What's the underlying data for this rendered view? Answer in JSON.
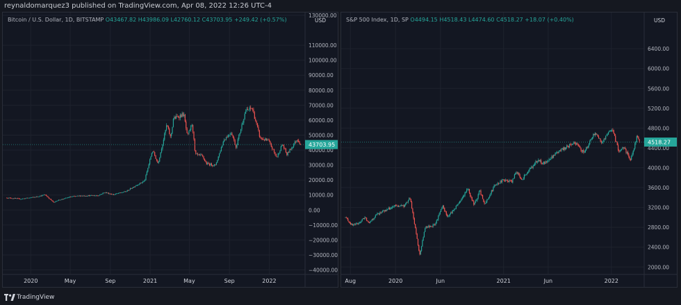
{
  "header": {
    "publisher_text": "reynaldomarquez3 published on TradingView.com, Apr 08, 2022 12:26 UTC-4"
  },
  "footer": {
    "brand": "TradingView"
  },
  "colors": {
    "up": "#26a69a",
    "down": "#ef5350",
    "background": "#131722",
    "grid": "#1e222d",
    "price_label": "#26a69a"
  },
  "chart_data": [
    {
      "type": "candlestick",
      "title": "Bitcoin / U.S. Dollar, 1D, BITSTAMP",
      "ohlc": {
        "open": "O43467.82",
        "high": "H43986.09",
        "low": "L42760.12",
        "close": "C43703.95",
        "change": "+249.42 (+0.57%)"
      },
      "currency": "USD",
      "current_price_label": "43703.95",
      "current_price": 43703.95,
      "ylim": [
        -43000,
        130000
      ],
      "y_ticks": [
        130000,
        110000,
        100000,
        90000,
        80000,
        70000,
        60000,
        50000,
        40000,
        30000,
        20000,
        10000,
        0,
        -10000,
        -20000,
        -30000,
        -40000
      ],
      "y_tick_labels": [
        "130000.00",
        "110000.00",
        "100000.00",
        "90000.00",
        "80000.00",
        "70000.00",
        "60000.00",
        "50000.00",
        "40000.00",
        "30000.00",
        "20000.00",
        "10000.00",
        "0.00",
        "−10000.00",
        "−20000.00",
        "−30000.00",
        "−40000.00"
      ],
      "x_tick_labels": [
        "2020",
        "May",
        "Sep",
        "2021",
        "May",
        "Sep",
        "2022"
      ],
      "x_ticks": [
        "2020-01-01",
        "2020-05-01",
        "2020-09-01",
        "2021-01-01",
        "2021-05-01",
        "2021-09-01",
        "2022-01-01"
      ],
      "x_range": [
        "2019-10-20",
        "2022-04-08"
      ],
      "path": [
        [
          "2019-10-20",
          8200
        ],
        [
          "2019-12-01",
          7400
        ],
        [
          "2020-01-15",
          8700
        ],
        [
          "2020-02-14",
          10200
        ],
        [
          "2020-03-12",
          4900
        ],
        [
          "2020-03-20",
          6200
        ],
        [
          "2020-05-01",
          8800
        ],
        [
          "2020-06-01",
          9500
        ],
        [
          "2020-07-25",
          9700
        ],
        [
          "2020-08-15",
          11800
        ],
        [
          "2020-09-10",
          10300
        ],
        [
          "2020-10-20",
          12500
        ],
        [
          "2020-11-15",
          16000
        ],
        [
          "2020-12-15",
          19500
        ],
        [
          "2021-01-08",
          40000
        ],
        [
          "2021-01-25",
          31000
        ],
        [
          "2021-02-21",
          57000
        ],
        [
          "2021-03-05",
          48000
        ],
        [
          "2021-03-13",
          61000
        ],
        [
          "2021-04-14",
          64000
        ],
        [
          "2021-04-25",
          49000
        ],
        [
          "2021-05-10",
          58000
        ],
        [
          "2021-05-19",
          37000
        ],
        [
          "2021-06-10",
          36000
        ],
        [
          "2021-06-22",
          31000
        ],
        [
          "2021-07-20",
          29800
        ],
        [
          "2021-08-15",
          47000
        ],
        [
          "2021-09-07",
          52000
        ],
        [
          "2021-09-21",
          42000
        ],
        [
          "2021-10-20",
          66000
        ],
        [
          "2021-11-10",
          68000
        ],
        [
          "2021-12-04",
          48000
        ],
        [
          "2021-12-30",
          46000
        ],
        [
          "2022-01-24",
          35000
        ],
        [
          "2022-02-10",
          44000
        ],
        [
          "2022-02-24",
          37000
        ],
        [
          "2022-03-28",
          47500
        ],
        [
          "2022-04-08",
          43703.95
        ]
      ]
    },
    {
      "type": "candlestick",
      "title": "S&P 500 Index, 1D, SP",
      "ohlc": {
        "open": "O4494.15",
        "high": "H4518.43",
        "low": "L4474.60",
        "close": "C4518.27",
        "change": "+18.07 (+0.40%)"
      },
      "currency": "USD",
      "current_price_label": "4518.27",
      "current_price": 4518.27,
      "ylim": [
        1850,
        6850
      ],
      "y_ticks": [
        6400,
        6000,
        5600,
        5200,
        4800,
        4400,
        4000,
        3600,
        3200,
        2800,
        2400,
        2000
      ],
      "y_tick_labels": [
        "6400.00",
        "6000.00",
        "5600.00",
        "5200.00",
        "4800.00",
        "4400.00",
        "4000.00",
        "3600.00",
        "3200.00",
        "2800.00",
        "2400.00",
        "2000.00"
      ],
      "x_tick_labels": [
        "Aug",
        "2020",
        "Jun",
        "2021",
        "Jun",
        "2022"
      ],
      "x_ticks": [
        "2019-08-01",
        "2020-01-01",
        "2020-06-01",
        "2021-01-01",
        "2021-06-01",
        "2022-01-01"
      ],
      "x_range": [
        "2019-07-15",
        "2022-04-08"
      ],
      "path": [
        [
          "2019-07-15",
          3000
        ],
        [
          "2019-08-05",
          2850
        ],
        [
          "2019-08-27",
          2870
        ],
        [
          "2019-09-19",
          3000
        ],
        [
          "2019-10-03",
          2900
        ],
        [
          "2019-11-01",
          3070
        ],
        [
          "2019-12-31",
          3230
        ],
        [
          "2020-01-31",
          3230
        ],
        [
          "2020-02-19",
          3390
        ],
        [
          "2020-03-09",
          2750
        ],
        [
          "2020-03-23",
          2240
        ],
        [
          "2020-04-10",
          2790
        ],
        [
          "2020-05-14",
          2850
        ],
        [
          "2020-06-08",
          3230
        ],
        [
          "2020-06-26",
          3010
        ],
        [
          "2020-07-31",
          3270
        ],
        [
          "2020-09-02",
          3580
        ],
        [
          "2020-09-23",
          3240
        ],
        [
          "2020-10-12",
          3530
        ],
        [
          "2020-10-30",
          3270
        ],
        [
          "2020-11-30",
          3620
        ],
        [
          "2020-12-31",
          3760
        ],
        [
          "2021-01-29",
          3710
        ],
        [
          "2021-02-12",
          3930
        ],
        [
          "2021-03-04",
          3770
        ],
        [
          "2021-04-30",
          4180
        ],
        [
          "2021-05-12",
          4060
        ],
        [
          "2021-06-30",
          4300
        ],
        [
          "2021-08-31",
          4520
        ],
        [
          "2021-09-30",
          4300
        ],
        [
          "2021-11-05",
          4700
        ],
        [
          "2021-12-01",
          4510
        ],
        [
          "2021-12-31",
          4780
        ],
        [
          "2022-01-03",
          4790
        ],
        [
          "2022-01-27",
          4330
        ],
        [
          "2022-02-11",
          4420
        ],
        [
          "2022-03-08",
          4170
        ],
        [
          "2022-03-29",
          4630
        ],
        [
          "2022-04-08",
          4518.27
        ]
      ]
    }
  ]
}
